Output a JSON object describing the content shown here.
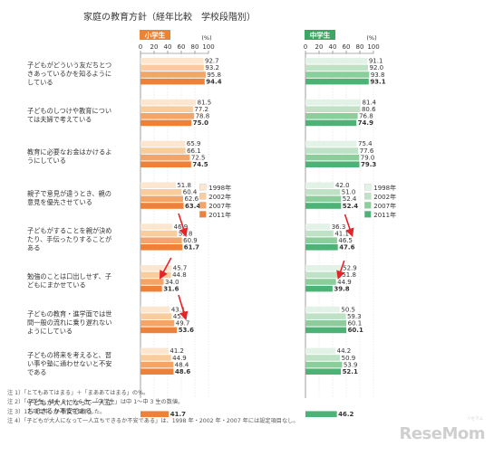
{
  "chart_data": {
    "type": "bar",
    "title": "家庭の教育方針（経年比較　学校段階別）",
    "unit_label": "(%)",
    "xlim": [
      0,
      100
    ],
    "ticks": [
      0,
      20,
      40,
      60,
      80,
      100
    ],
    "years": [
      "1998年",
      "2002年",
      "2007年",
      "2011年"
    ],
    "colors": {
      "elementary": [
        "#fde6cf",
        "#f9cc9e",
        "#f3a468",
        "#ee8137"
      ],
      "middle": [
        "#e3f2e6",
        "#bfe1c6",
        "#8ccd9c",
        "#4db276"
      ]
    },
    "panels": [
      {
        "label": "小学生",
        "header_color": "#e8833a"
      },
      {
        "label": "中学生",
        "header_color": "#3fa564"
      }
    ],
    "categories": [
      {
        "label": "子どもがどういう友だちとつきあっているかを知るようにしている",
        "lines": [
          "子どもがどういう友だちとつ",
          "きあっているかを知るように",
          "している"
        ],
        "elementary": [
          92.7,
          93.2,
          95.8,
          94.4
        ],
        "middle": [
          91.1,
          92.0,
          93.8,
          93.1
        ]
      },
      {
        "label": "子どものしつけや教育については夫婦で考えている",
        "lines": [
          "子どものしつけや教育につい",
          "ては夫婦で考えている"
        ],
        "elementary": [
          81.5,
          77.2,
          78.8,
          75.0
        ],
        "middle": [
          81.4,
          80.6,
          76.8,
          74.9
        ]
      },
      {
        "label": "教育に必要なお金はかけるようにしている",
        "lines": [
          "教育に必要なお金はかけるよ",
          "うにしている"
        ],
        "elementary": [
          65.9,
          66.1,
          72.5,
          74.5
        ],
        "middle": [
          75.4,
          77.6,
          79.0,
          79.3
        ]
      },
      {
        "label": "親子で意見が違うとき、親の意見を優先させている",
        "lines": [
          "親子で意見が違うとき、親の",
          "意見を優先させている"
        ],
        "elementary": [
          51.8,
          60.4,
          62.6,
          63.4
        ],
        "middle": [
          42.0,
          51.0,
          52.4,
          52.4
        ]
      },
      {
        "label": "子どもがすることを親が決めたり、手伝ったりすることがある",
        "lines": [
          "子どもがすることを親が決め",
          "たり、手伝ったりすることが",
          "ある"
        ],
        "elementary": [
          46.9,
          53.8,
          60.9,
          61.7
        ],
        "middle": [
          36.3,
          41.1,
          46.5,
          47.6
        ]
      },
      {
        "label": "勉強のことは口出しせず、子どもにまかせている",
        "lines": [
          "勉強のことは口出しせず、子",
          "どもにまかせている"
        ],
        "elementary": [
          45.7,
          44.8,
          34.0,
          31.6
        ],
        "middle": [
          52.9,
          51.8,
          44.9,
          39.8
        ]
      },
      {
        "label": "子どもの教育・進学面では世間一般の流れに乗り遅れないようにしている",
        "lines": [
          "子どもの教育・進学面では世",
          "間一般の流れに乗り遅れない",
          "ようにしている"
        ],
        "elementary": [
          43.1,
          45.9,
          49.7,
          53.6
        ],
        "middle": [
          50.5,
          59.3,
          60.1,
          60.1
        ]
      },
      {
        "label": "子どもの将来を考えると、習い事や塾に通わせないと不安である",
        "lines": [
          "子どもの将来を考えると、習",
          "い事や塾に通わせないと不安",
          "である"
        ],
        "elementary": [
          41.2,
          44.9,
          48.4,
          48.6
        ],
        "middle": [
          44.2,
          50.9,
          53.9,
          52.1
        ]
      },
      {
        "label": "子どもが大人になって一人立ちできるか不安である",
        "lines": [
          "子どもが大人になって一人立",
          "ちできるか不安である"
        ],
        "elementary": [
          null,
          null,
          null,
          41.7
        ],
        "middle": [
          null,
          null,
          null,
          46.2
        ]
      }
    ],
    "legend_placement": "inside panels, right of category 4"
  },
  "notes": [
    "注 1）「とてもあてはまる」＋「まああてはまる」の%。",
    "注 2）「小学生」は小 3～小 6 生、「中学生」は中 1～中 3 生の数値。",
    "注 3）12 項目中、9 項目を図示した。",
    "注 4）「子どもが大人になって一人立ちできるか不安である」は、1998 年・2002 年・2007 年には設定項目なし。"
  ],
  "logo": {
    "text": "ReseMom",
    "kana": "リセマム"
  }
}
